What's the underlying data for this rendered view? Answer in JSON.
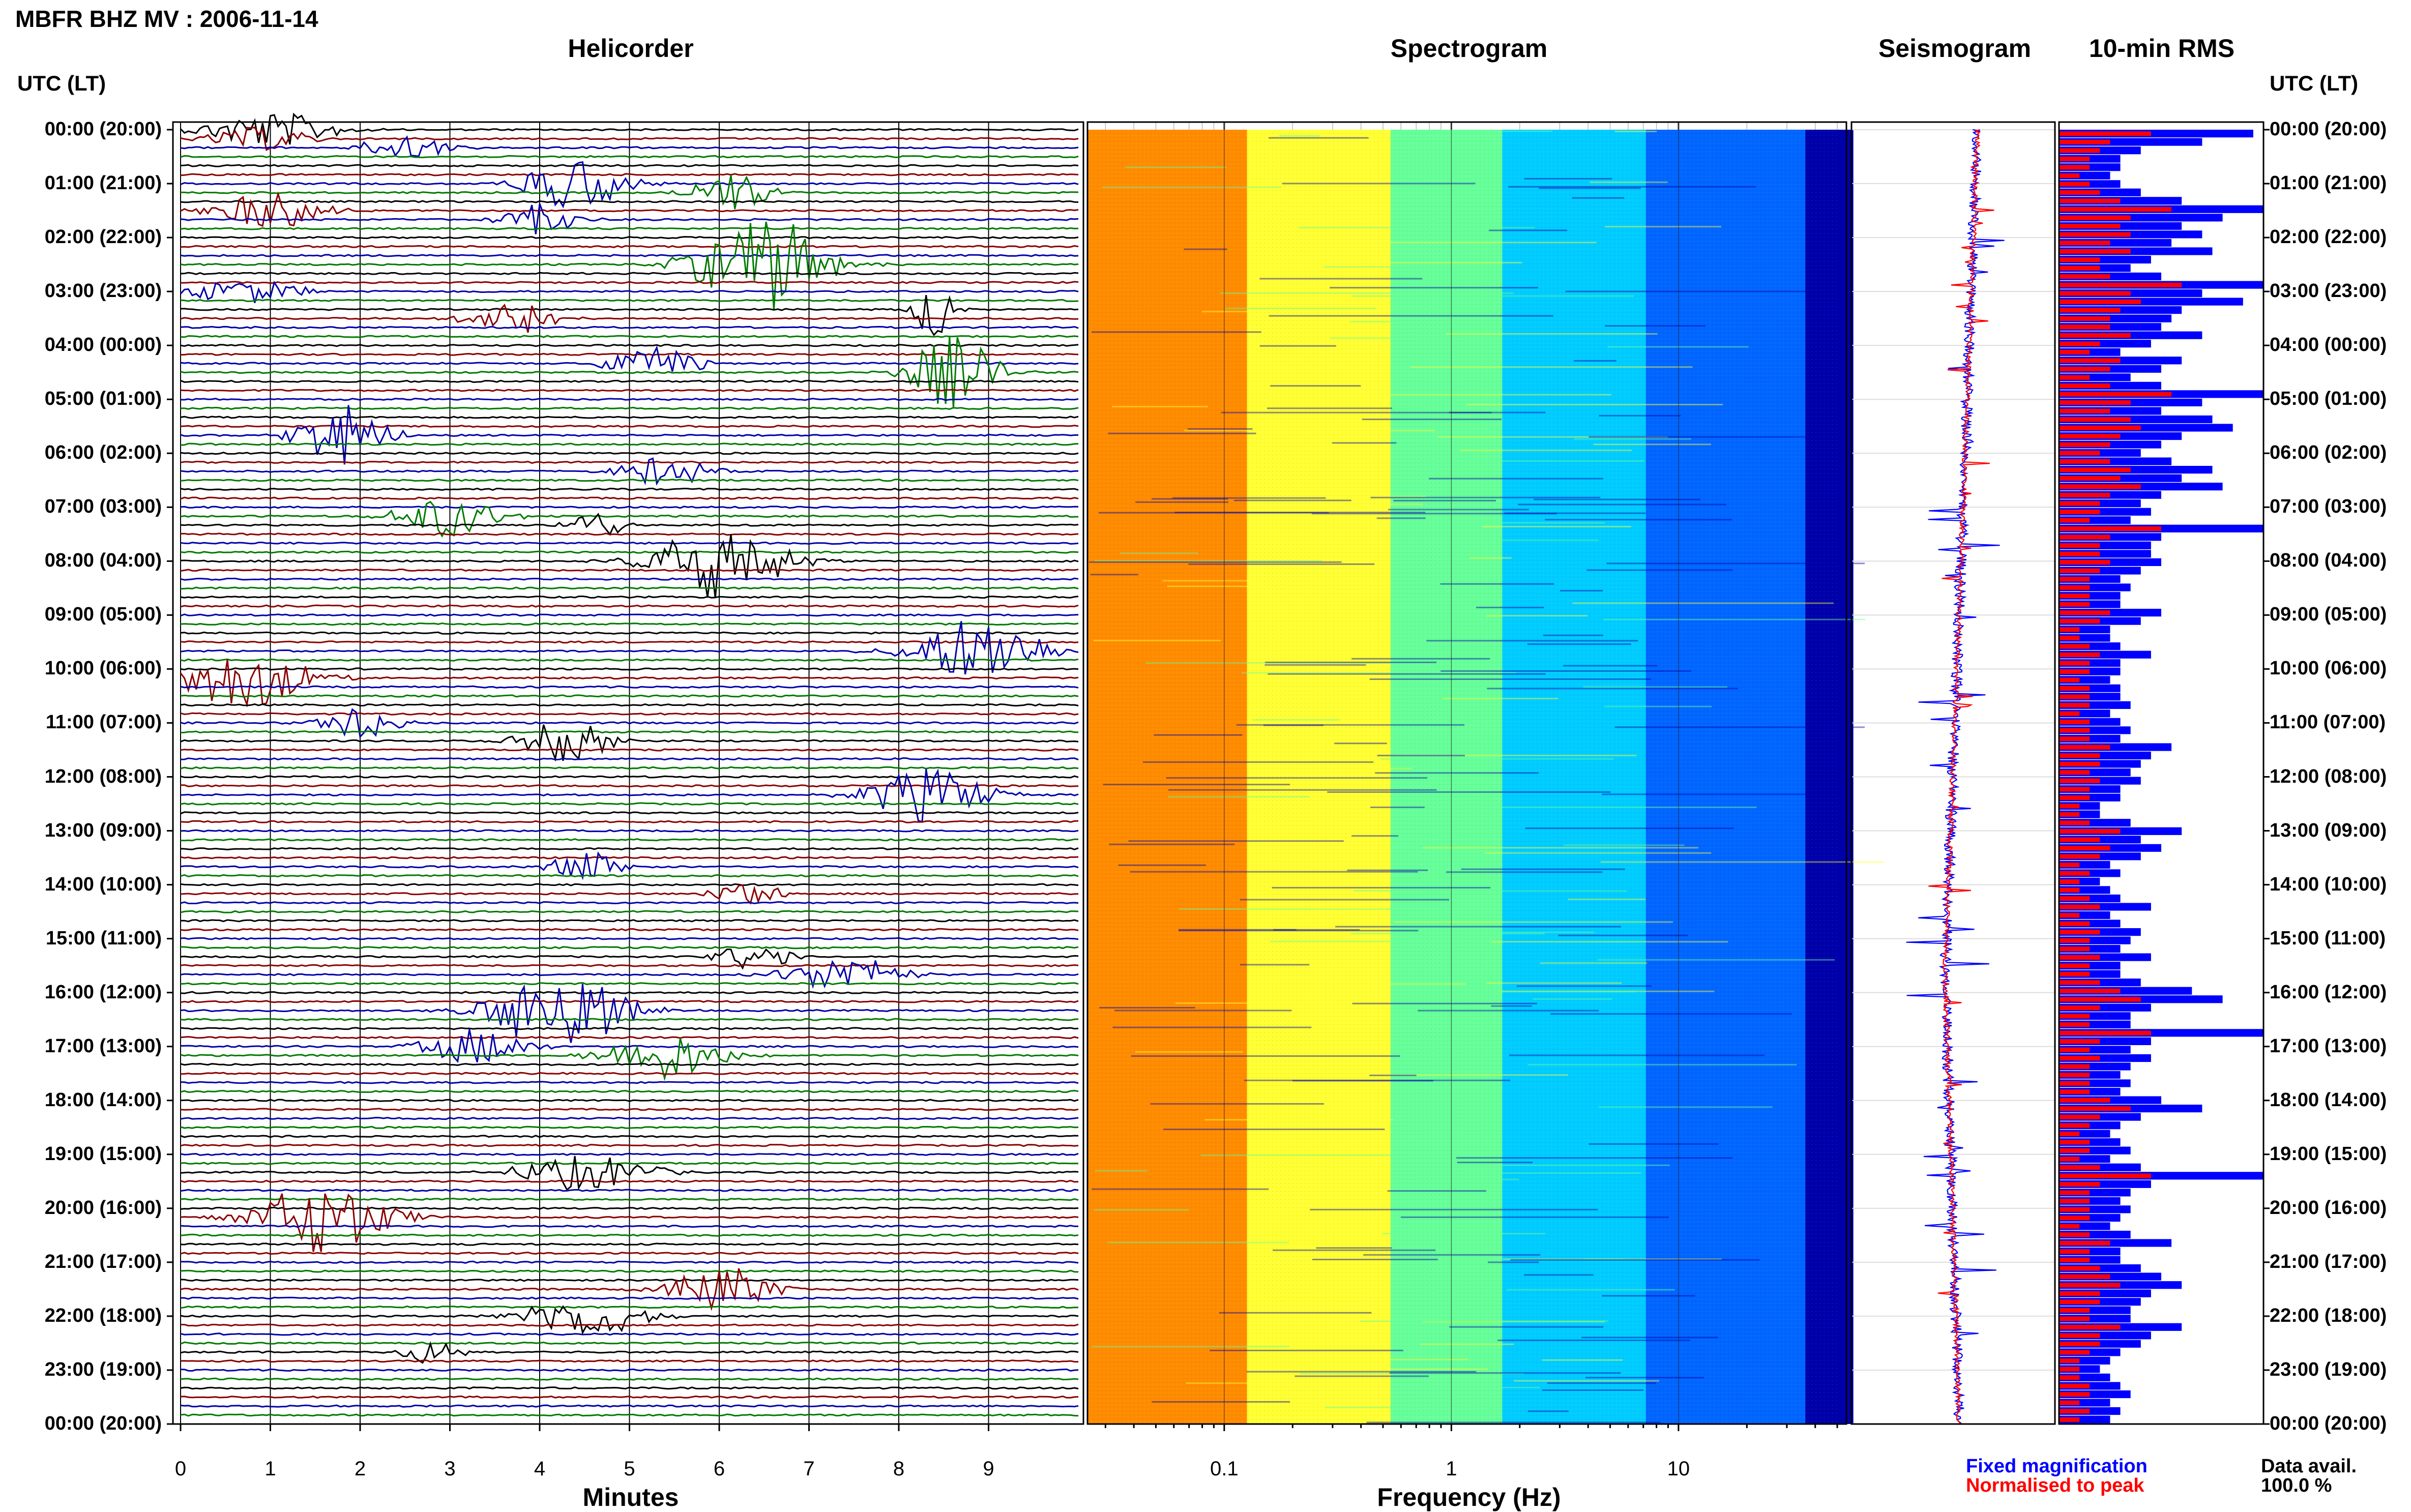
{
  "header": {
    "title": "MBFR BHZ MV : 2006-11-14"
  },
  "panels": {
    "helicorder": "Helicorder",
    "spectrogram": "Spectrogram",
    "seismogram": "Seismogram",
    "rms": "10-min RMS"
  },
  "axis_header": {
    "left": "UTC (LT)",
    "right": "UTC (LT)"
  },
  "row_labels": [
    "00:00 (20:00)",
    "01:00 (21:00)",
    "02:00 (22:00)",
    "03:00 (23:00)",
    "04:00 (00:00)",
    "05:00 (01:00)",
    "06:00 (02:00)",
    "07:00 (03:00)",
    "08:00 (04:00)",
    "09:00 (05:00)",
    "10:00 (06:00)",
    "11:00 (07:00)",
    "12:00 (08:00)",
    "13:00 (09:00)",
    "14:00 (10:00)",
    "15:00 (11:00)",
    "16:00 (12:00)",
    "17:00 (13:00)",
    "18:00 (14:00)",
    "19:00 (15:00)",
    "20:00 (16:00)",
    "21:00 (17:00)",
    "22:00 (18:00)",
    "23:00 (19:00)",
    "00:00 (20:00)"
  ],
  "footer": {
    "legend_fixed": "Fixed magnification",
    "legend_norm": "Normalised to peak",
    "data_avail_label": "Data avail.",
    "data_avail_value": "100.0 %"
  },
  "colors": {
    "trace_cycle": [
      "#000000",
      "#8b0000",
      "#0000aa",
      "#007a00"
    ],
    "fixed": "#0000ff",
    "normalised": "#ff0000"
  },
  "chart_data": [
    {
      "type": "line",
      "name": "helicorder",
      "title": "Helicorder",
      "xlabel": "Minutes",
      "xlim": [
        0,
        10
      ],
      "x_ticks": [
        "0",
        "1",
        "2",
        "3",
        "4",
        "5",
        "6",
        "7",
        "8",
        "9"
      ],
      "rows_per_hour": 6,
      "hours": 24,
      "events": [
        {
          "hour": 0,
          "slot": 0,
          "minute": 1.0,
          "amp": 0.6,
          "dur": 1.8
        },
        {
          "hour": 0,
          "slot": 1,
          "minute": 0.9,
          "amp": 0.4,
          "dur": 1.4
        },
        {
          "hour": 0,
          "slot": 2,
          "minute": 2.5,
          "amp": 0.4,
          "dur": 1.2
        },
        {
          "hour": 1,
          "slot": 0,
          "minute": 4.4,
          "amp": 0.9,
          "dur": 1.4
        },
        {
          "hour": 1,
          "slot": 1,
          "minute": 6.1,
          "amp": 0.6,
          "dur": 1.2
        },
        {
          "hour": 1,
          "slot": 3,
          "minute": 1.0,
          "amp": 0.6,
          "dur": 1.5
        },
        {
          "hour": 1,
          "slot": 4,
          "minute": 4.0,
          "amp": 0.5,
          "dur": 1.0
        },
        {
          "hour": 2,
          "slot": 3,
          "minute": 6.5,
          "amp": 1.6,
          "dur": 1.8
        },
        {
          "hour": 3,
          "slot": 0,
          "minute": 0.7,
          "amp": 0.4,
          "dur": 1.6
        },
        {
          "hour": 3,
          "slot": 2,
          "minute": 8.4,
          "amp": 1.2,
          "dur": 0.5
        },
        {
          "hour": 3,
          "slot": 3,
          "minute": 3.7,
          "amp": 0.6,
          "dur": 1.2
        },
        {
          "hour": 4,
          "slot": 2,
          "minute": 5.3,
          "amp": 0.5,
          "dur": 1.4
        },
        {
          "hour": 4,
          "slot": 3,
          "minute": 8.6,
          "amp": 1.2,
          "dur": 1.2
        },
        {
          "hour": 5,
          "slot": 4,
          "minute": 1.8,
          "amp": 1.0,
          "dur": 1.2
        },
        {
          "hour": 6,
          "slot": 2,
          "minute": 5.4,
          "amp": 0.5,
          "dur": 1.2
        },
        {
          "hour": 7,
          "slot": 1,
          "minute": 3.0,
          "amp": 0.7,
          "dur": 1.4
        },
        {
          "hour": 7,
          "slot": 2,
          "minute": 4.6,
          "amp": 0.5,
          "dur": 0.8
        },
        {
          "hour": 8,
          "slot": 0,
          "minute": 6.0,
          "amp": 1.3,
          "dur": 1.8
        },
        {
          "hour": 9,
          "slot": 4,
          "minute": 8.9,
          "amp": 1.1,
          "dur": 1.8
        },
        {
          "hour": 10,
          "slot": 1,
          "minute": 0.7,
          "amp": 1.0,
          "dur": 1.8
        },
        {
          "hour": 11,
          "slot": 0,
          "minute": 2.0,
          "amp": 0.6,
          "dur": 1.0
        },
        {
          "hour": 11,
          "slot": 2,
          "minute": 4.3,
          "amp": 0.7,
          "dur": 1.2
        },
        {
          "hour": 12,
          "slot": 2,
          "minute": 8.3,
          "amp": 0.9,
          "dur": 1.6
        },
        {
          "hour": 13,
          "slot": 4,
          "minute": 4.5,
          "amp": 0.5,
          "dur": 1.0
        },
        {
          "hour": 14,
          "slot": 1,
          "minute": 6.3,
          "amp": 0.4,
          "dur": 1.0
        },
        {
          "hour": 15,
          "slot": 2,
          "minute": 6.4,
          "amp": 0.5,
          "dur": 1.0
        },
        {
          "hour": 15,
          "slot": 4,
          "minute": 7.4,
          "amp": 0.6,
          "dur": 1.6
        },
        {
          "hour": 16,
          "slot": 2,
          "minute": 4.2,
          "amp": 1.4,
          "dur": 1.8
        },
        {
          "hour": 17,
          "slot": 0,
          "minute": 3.3,
          "amp": 0.6,
          "dur": 1.4
        },
        {
          "hour": 17,
          "slot": 1,
          "minute": 5.4,
          "amp": 0.8,
          "dur": 1.6
        },
        {
          "hour": 19,
          "slot": 2,
          "minute": 4.5,
          "amp": 0.6,
          "dur": 1.8
        },
        {
          "hour": 20,
          "slot": 1,
          "minute": 1.6,
          "amp": 1.2,
          "dur": 1.8
        },
        {
          "hour": 21,
          "slot": 3,
          "minute": 6.0,
          "amp": 0.8,
          "dur": 1.4
        },
        {
          "hour": 22,
          "slot": 0,
          "minute": 4.5,
          "amp": 0.7,
          "dur": 1.6
        },
        {
          "hour": 22,
          "slot": 4,
          "minute": 2.8,
          "amp": 0.4,
          "dur": 0.8
        }
      ]
    },
    {
      "type": "heatmap",
      "name": "spectrogram",
      "title": "Spectrogram",
      "xlabel": "Frequency (Hz)",
      "x_scale": "log",
      "xlim": [
        0.025,
        50
      ],
      "x_ticks": [
        0.1,
        1,
        10
      ],
      "x_tick_labels": [
        "0.1",
        "1",
        "10"
      ],
      "color_ramp": [
        "#ff8c00",
        "#ffff33",
        "#66ff99",
        "#00ccff",
        "#0066ff",
        "#0000aa"
      ]
    },
    {
      "type": "line",
      "name": "seismogram",
      "title": "Seismogram",
      "series": [
        {
          "name": "Fixed magnification",
          "color": "#0000ff"
        },
        {
          "name": "Normalised to peak",
          "color": "#ff0000"
        }
      ],
      "drift_start": 0.62,
      "drift_min": 0.46,
      "drift_end": 0.53
    },
    {
      "type": "bar",
      "name": "rms",
      "title": "10-min RMS",
      "series": [
        {
          "name": "Fixed magnification",
          "color": "#0000ff",
          "values": [
            0.95,
            0.7,
            0.4,
            0.3,
            0.3,
            0.25,
            0.3,
            0.4,
            0.6,
            1.0,
            0.8,
            0.6,
            0.7,
            0.55,
            0.75,
            0.45,
            0.35,
            0.5,
            1.0,
            0.7,
            0.9,
            0.6,
            0.55,
            0.5,
            0.7,
            0.45,
            0.3,
            0.6,
            0.5,
            0.35,
            0.5,
            1.0,
            0.7,
            0.5,
            0.75,
            0.85,
            0.6,
            0.5,
            0.4,
            0.55,
            0.75,
            0.6,
            0.8,
            0.5,
            0.4,
            0.45,
            0.35,
            1.0,
            0.5,
            0.45,
            0.45,
            0.5,
            0.4,
            0.3,
            0.35,
            0.3,
            0.3,
            0.5,
            0.4,
            0.25,
            0.25,
            0.3,
            0.45,
            0.3,
            0.3,
            0.25,
            0.3,
            0.3,
            0.35,
            0.25,
            0.3,
            0.35,
            0.3,
            0.55,
            0.45,
            0.4,
            0.35,
            0.4,
            0.3,
            0.3,
            0.2,
            0.2,
            0.35,
            0.6,
            0.4,
            0.5,
            0.4,
            0.25,
            0.3,
            0.2,
            0.25,
            0.3,
            0.45,
            0.25,
            0.3,
            0.4,
            0.35,
            0.3,
            0.45,
            0.3,
            0.3,
            0.4,
            0.65,
            0.8,
            0.45,
            0.35,
            0.35,
            1.0,
            0.45,
            0.35,
            0.45,
            0.35,
            0.3,
            0.35,
            0.3,
            0.5,
            0.7,
            0.4,
            0.3,
            0.25,
            0.3,
            0.35,
            0.25,
            0.4,
            1.0,
            0.45,
            0.35,
            0.3,
            0.35,
            0.3,
            0.25,
            0.35,
            0.55,
            0.3,
            0.3,
            0.4,
            0.5,
            0.6,
            0.45,
            0.4,
            0.35,
            0.35,
            0.6,
            0.45,
            0.4,
            0.3,
            0.25,
            0.2,
            0.25,
            0.3,
            0.35,
            0.25,
            0.3,
            0.25
          ]
        },
        {
          "name": "Normalised to peak",
          "color": "#ff0000",
          "values": [
            0.45,
            0.25,
            0.2,
            0.15,
            0.15,
            0.1,
            0.15,
            0.2,
            0.3,
            0.55,
            0.35,
            0.3,
            0.35,
            0.25,
            0.35,
            0.2,
            0.2,
            0.25,
            0.6,
            0.35,
            0.4,
            0.3,
            0.25,
            0.25,
            0.35,
            0.2,
            0.15,
            0.3,
            0.25,
            0.15,
            0.25,
            0.55,
            0.35,
            0.25,
            0.35,
            0.4,
            0.3,
            0.25,
            0.2,
            0.25,
            0.35,
            0.3,
            0.4,
            0.25,
            0.2,
            0.2,
            0.15,
            0.5,
            0.25,
            0.2,
            0.2,
            0.25,
            0.2,
            0.15,
            0.15,
            0.15,
            0.15,
            0.25,
            0.2,
            0.1,
            0.1,
            0.15,
            0.2,
            0.15,
            0.15,
            0.1,
            0.15,
            0.15,
            0.15,
            0.1,
            0.15,
            0.15,
            0.15,
            0.25,
            0.2,
            0.2,
            0.15,
            0.2,
            0.15,
            0.15,
            0.1,
            0.1,
            0.15,
            0.3,
            0.2,
            0.25,
            0.2,
            0.1,
            0.15,
            0.1,
            0.1,
            0.15,
            0.2,
            0.1,
            0.15,
            0.2,
            0.15,
            0.15,
            0.2,
            0.15,
            0.15,
            0.2,
            0.3,
            0.4,
            0.2,
            0.15,
            0.15,
            0.45,
            0.2,
            0.15,
            0.2,
            0.15,
            0.15,
            0.15,
            0.15,
            0.25,
            0.35,
            0.2,
            0.15,
            0.1,
            0.15,
            0.15,
            0.1,
            0.2,
            0.45,
            0.2,
            0.15,
            0.15,
            0.15,
            0.15,
            0.1,
            0.15,
            0.25,
            0.15,
            0.15,
            0.2,
            0.25,
            0.3,
            0.2,
            0.2,
            0.15,
            0.15,
            0.3,
            0.2,
            0.2,
            0.15,
            0.1,
            0.1,
            0.1,
            0.15,
            0.15,
            0.1,
            0.15,
            0.1
          ]
        }
      ]
    }
  ]
}
